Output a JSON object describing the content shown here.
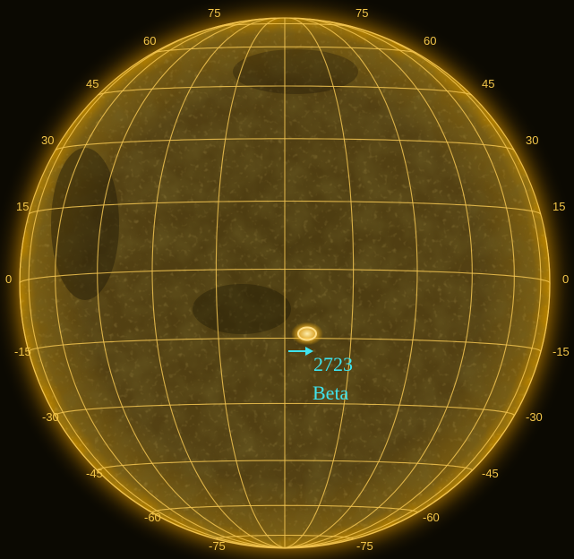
{
  "colors": {
    "corona": "#ffb300",
    "disk_center": "#4a3a10",
    "disk_edge": "#7a5c10",
    "grid": "#f2c451",
    "labels": "#f3c64a",
    "annotation": "#3fe3ee"
  },
  "grid": {
    "latitudes": [
      75,
      60,
      45,
      30,
      15,
      0,
      -15,
      -30,
      -45,
      -60,
      -75
    ],
    "longitudes": [
      -90,
      -75,
      -60,
      -45,
      -30,
      -15,
      0,
      15,
      30,
      45,
      60,
      75,
      90
    ],
    "left_labels": [
      "60",
      "45",
      "30",
      "15",
      "0",
      "-15",
      "-30",
      "-45",
      "-60",
      "-75"
    ],
    "right_labels": [
      "60",
      "45",
      "30",
      "15",
      "0",
      "-15",
      "-30",
      "-45",
      "-60",
      "-75"
    ],
    "top_labels": [
      "75",
      "75"
    ]
  },
  "active_region": {
    "number": "2723",
    "classification": "Beta",
    "latitude_deg": -14,
    "longitude_deg": 5
  }
}
